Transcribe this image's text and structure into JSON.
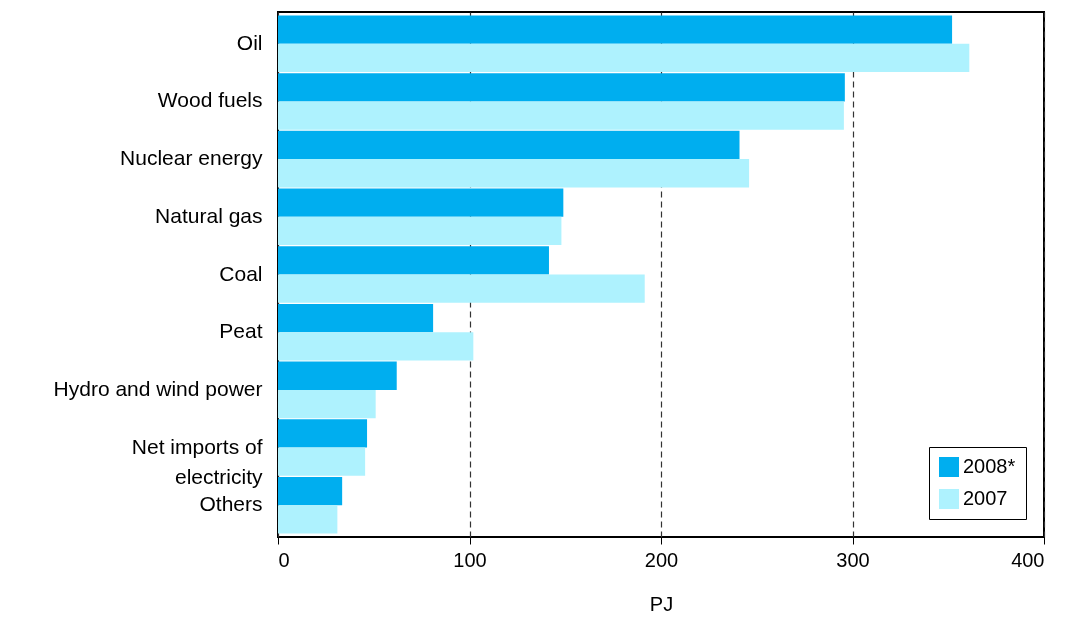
{
  "chart_data": {
    "type": "bar",
    "orientation": "horizontal",
    "xlabel": "PJ",
    "categories": [
      "Oil",
      "Wood fuels",
      "Nuclear energy",
      "Natural gas",
      "Coal",
      "Peat",
      "Hydro and wind power",
      "Net imports of electricity",
      "Others"
    ],
    "series": [
      {
        "name": "2008*",
        "color": "#00aeef",
        "values": [
          352,
          296,
          241,
          149,
          141.5,
          81,
          62,
          46.5,
          33.5
        ]
      },
      {
        "name": "2007",
        "color": "#aef2fe",
        "values": [
          361,
          295.5,
          246,
          148,
          191.5,
          102,
          51,
          45.5,
          31
        ]
      }
    ],
    "xlim": [
      0,
      400
    ],
    "xticks": [
      0,
      100,
      200,
      300,
      400
    ],
    "grid": "x",
    "legend": "bottom right"
  }
}
